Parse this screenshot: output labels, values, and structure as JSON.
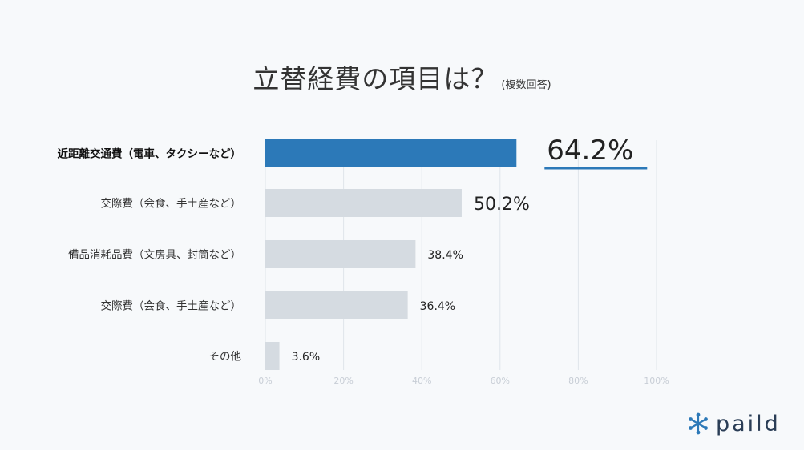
{
  "title": "立替経費の項目は？",
  "title_note": "(複数回答)",
  "brand": "paild",
  "colors": {
    "highlight": "#2c79b8",
    "bar": "#d5dbe1",
    "grid": "#dfe5ea",
    "text": "#333333"
  },
  "chart_data": {
    "type": "bar",
    "orientation": "horizontal",
    "categories": [
      "近距離交通費（電車、タクシーなど）",
      "交際費（会食、手土産など）",
      "備品消耗品費（文房具、封筒など）",
      "交際費（会食、手土産など）",
      "その他"
    ],
    "values": [
      64.2,
      50.2,
      38.4,
      36.4,
      3.6
    ],
    "value_labels": [
      "64.2%",
      "50.2%",
      "38.4%",
      "36.4%",
      "3.6%"
    ],
    "highlight_index": 0,
    "xlim": [
      0,
      100
    ],
    "xticks": [
      0,
      20,
      40,
      60,
      80,
      100
    ],
    "xtick_labels": [
      "0%",
      "20%",
      "40%",
      "60%",
      "80%",
      "100%"
    ],
    "grid": true,
    "legend": "none"
  }
}
